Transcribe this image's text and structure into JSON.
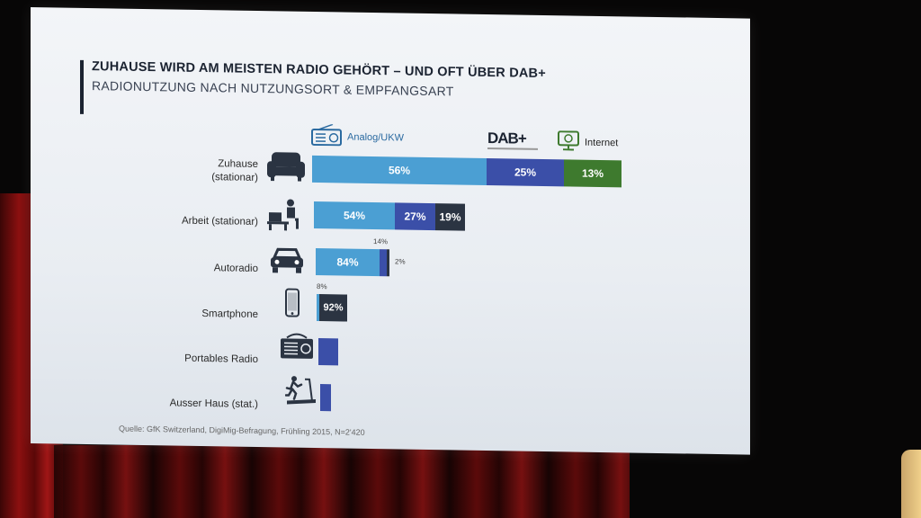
{
  "slide": {
    "title": "ZUHAUSE WIRD AM MEISTEN RADIO GEHÖRT – UND OFT ÜBER DAB+",
    "subtitle": "RADIONUTZUNG NACH NUTZUNGSORT & EMPFANGSART",
    "source": "Quelle: GfK Switzerland, DigiMig-Befragung, Frühling 2015, N=2'420"
  },
  "legend": {
    "analog": "Analog/UKW",
    "dab_logo": "DAB+",
    "internet": "Internet"
  },
  "colors": {
    "analog": "#4b9fd3",
    "dab": "#3b4fa8",
    "internet": "#3e7a2e",
    "dark": "#2b3442"
  },
  "chart_data": {
    "type": "bar",
    "orientation": "horizontal",
    "stacked": true,
    "categories": [
      "Zuhause (stationar)",
      "Arbeit (stationar)",
      "Autoradio",
      "Smartphone",
      "Portables Radio",
      "Ausser Haus (stat.)"
    ],
    "category_lines": [
      [
        "Zuhause",
        "(stationar)"
      ],
      [
        "Arbeit (stationar)"
      ],
      [
        "Autoradio"
      ],
      [
        "Smartphone"
      ],
      [
        "Portables Radio"
      ],
      [
        "Ausser Haus (stat.)"
      ]
    ],
    "series": [
      {
        "name": "Analog/UKW",
        "values": [
          56,
          54,
          84,
          8,
          null,
          null
        ]
      },
      {
        "name": "DAB+",
        "values": [
          25,
          27,
          14,
          null,
          null,
          null
        ]
      },
      {
        "name": "Internet",
        "values": [
          13,
          19,
          2,
          92,
          null,
          null
        ]
      }
    ],
    "data_labels": [
      [
        "56%",
        "25%",
        "13%"
      ],
      [
        "54%",
        "27%",
        "19%"
      ],
      [
        "84%",
        "14%",
        "2%"
      ],
      [
        "8%",
        "92%"
      ],
      [],
      []
    ],
    "relative_totals": [
      1.0,
      0.5,
      0.25,
      0.1,
      0.06,
      0.03
    ]
  }
}
